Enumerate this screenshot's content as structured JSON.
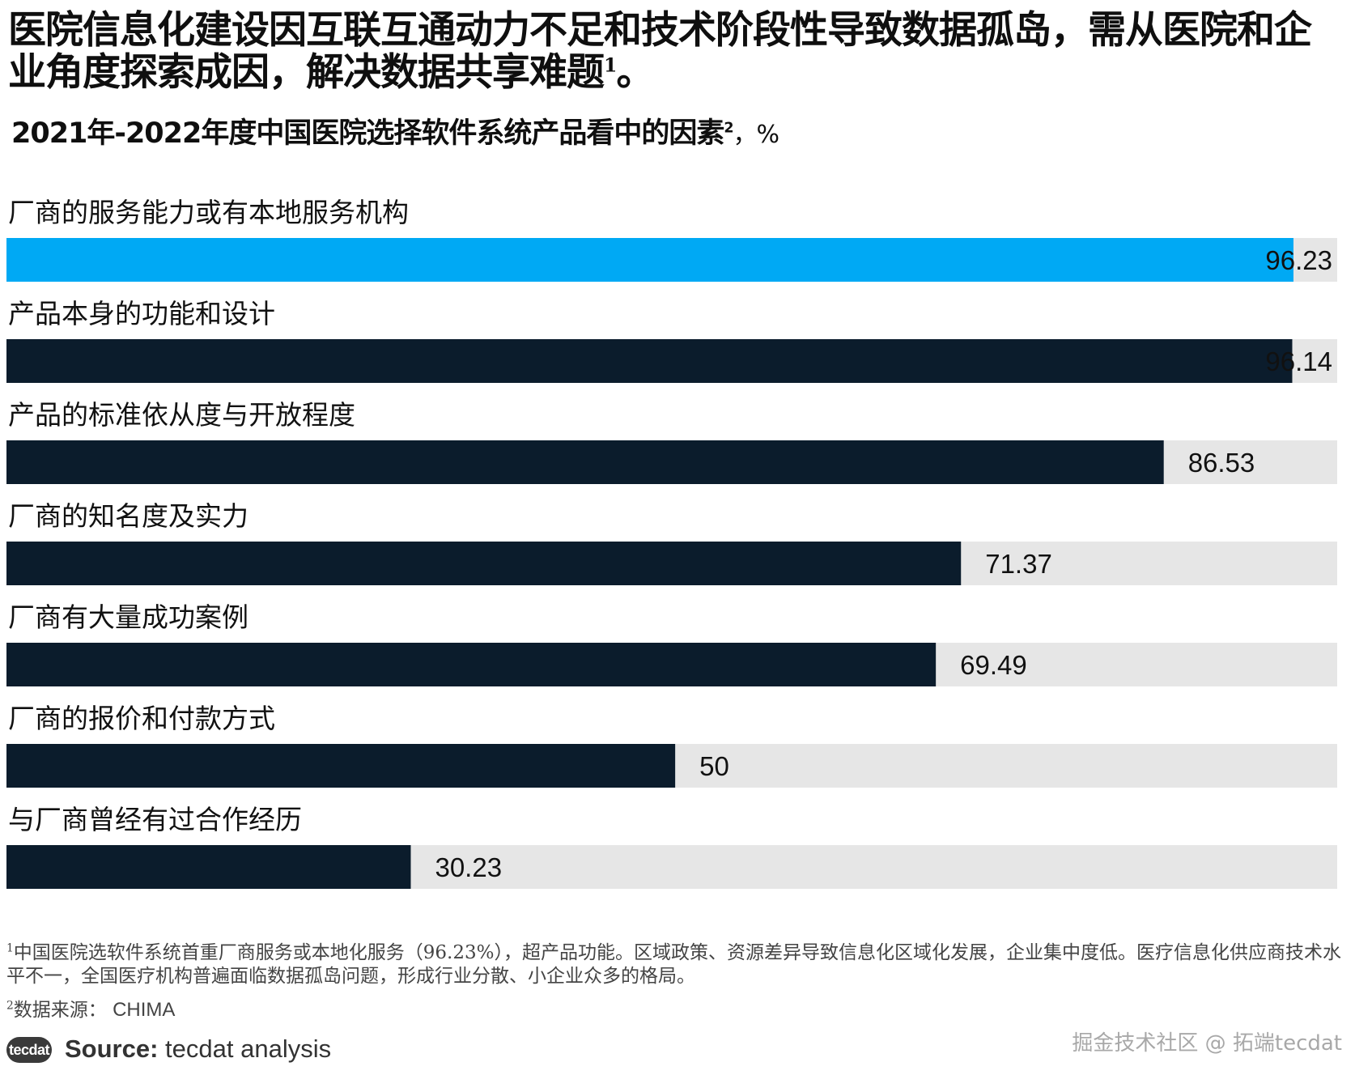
{
  "headline": {
    "text": "医院信息化建设因互联互通动力不足和技术阶段性导致数据孤岛，需从医院和企业角度探索成因，解决数据共享难题",
    "sup": "1",
    "end": "。"
  },
  "subtitle": {
    "text": "2021年-2022年度中国医院选择软件系统产品看中的因素",
    "sup": "2",
    "unit": "，%"
  },
  "colors": {
    "highlight": "#00a9f4",
    "bar": "#0b1c2c",
    "track": "#e6e6e6"
  },
  "chart_data": {
    "type": "bar",
    "orientation": "horizontal",
    "xlim": [
      0,
      100
    ],
    "categories": [
      "厂商的服务能力或有本地服务机构",
      "产品本身的功能和设计",
      "产品的标准依从度与开放程度",
      "厂商的知名度及实力",
      "厂商有大量成功案例",
      "厂商的报价和付款方式",
      "与厂商曾经有过合作经历"
    ],
    "values": [
      96.23,
      96.14,
      86.53,
      71.37,
      69.49,
      50,
      30.23
    ],
    "value_labels": [
      "96.23",
      "96.14",
      "86.53",
      "71.37",
      "69.49",
      "50",
      "30.23"
    ],
    "highlight_index": 0
  },
  "footnotes": {
    "fn1_sup": "1",
    "fn1_text": "中国医院选软件系统首重厂商服务或本地化服务（96.23%），超产品功能。区域政策、资源差异导致信息化区域化发展，企业集中度低。医疗信息化供应商技术水平不一，全国医疗机构普遍面临数据孤岛问题，形成行业分散、小企业众多的格局。",
    "fn2_sup": "2",
    "fn2_label": "数据来源：",
    "fn2_source": "CHIMA"
  },
  "source": {
    "logo": "tecdat",
    "label": "Source:",
    "text": " tecdat analysis"
  },
  "watermark": {
    "text": "掘金技术社区 @ 拓端tecdat"
  }
}
